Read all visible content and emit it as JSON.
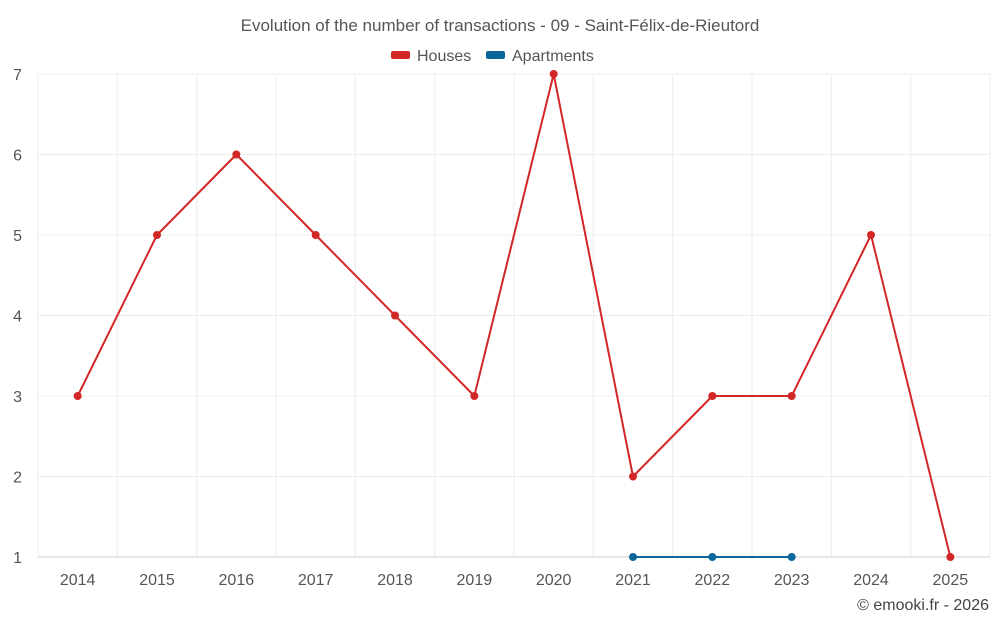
{
  "chart_data": {
    "type": "line",
    "title": "Evolution of the number of transactions - 09 - Saint-Félix-de-Rieutord",
    "x": [
      "2014",
      "2015",
      "2016",
      "2017",
      "2018",
      "2019",
      "2020",
      "2021",
      "2022",
      "2023",
      "2024",
      "2025"
    ],
    "ylim": [
      1,
      7
    ],
    "yticks": [
      1,
      2,
      3,
      4,
      5,
      6,
      7
    ],
    "grid": true,
    "legend_position": "top-center",
    "series": [
      {
        "name": "Houses",
        "color": "#d32627",
        "values": [
          3,
          5,
          6,
          5,
          4,
          3,
          7,
          2,
          3,
          3,
          5,
          1
        ]
      },
      {
        "name": "Apartments",
        "color": "#0a6799",
        "values": [
          null,
          null,
          null,
          null,
          null,
          null,
          null,
          1,
          1,
          1,
          null,
          null
        ]
      }
    ],
    "credit": "© emooki.fr - 2026"
  }
}
